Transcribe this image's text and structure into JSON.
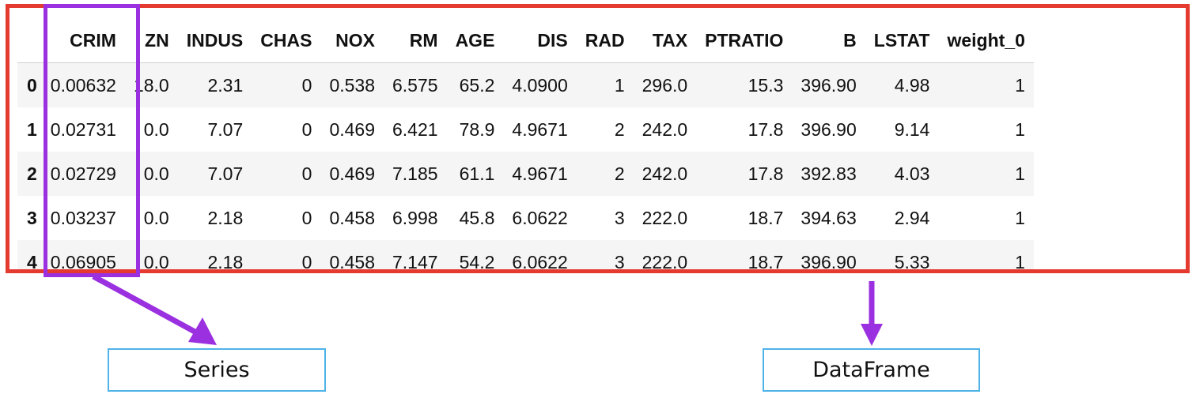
{
  "table": {
    "columns": [
      "",
      "CRIM",
      "ZN",
      "INDUS",
      "CHAS",
      "NOX",
      "RM",
      "AGE",
      "DIS",
      "RAD",
      "TAX",
      "PTRATIO",
      "B",
      "LSTAT",
      "weight_0"
    ],
    "rows": [
      {
        "index": "0",
        "cells": [
          "0.00632",
          "18.0",
          "2.31",
          "0",
          "0.538",
          "6.575",
          "65.2",
          "4.0900",
          "1",
          "296.0",
          "15.3",
          "396.90",
          "4.98",
          "1"
        ]
      },
      {
        "index": "1",
        "cells": [
          "0.02731",
          "0.0",
          "7.07",
          "0",
          "0.469",
          "6.421",
          "78.9",
          "4.9671",
          "2",
          "242.0",
          "17.8",
          "396.90",
          "9.14",
          "1"
        ]
      },
      {
        "index": "2",
        "cells": [
          "0.02729",
          "0.0",
          "7.07",
          "0",
          "0.469",
          "7.185",
          "61.1",
          "4.9671",
          "2",
          "242.0",
          "17.8",
          "392.83",
          "4.03",
          "1"
        ]
      },
      {
        "index": "3",
        "cells": [
          "0.03237",
          "0.0",
          "2.18",
          "0",
          "0.458",
          "6.998",
          "45.8",
          "6.0622",
          "3",
          "222.0",
          "18.7",
          "394.63",
          "2.94",
          "1"
        ]
      },
      {
        "index": "4",
        "cells": [
          "0.06905",
          "0.0",
          "2.18",
          "0",
          "0.458",
          "7.147",
          "54.2",
          "6.0622",
          "3",
          "222.0",
          "18.7",
          "396.90",
          "5.33",
          "1"
        ]
      }
    ]
  },
  "labels": {
    "series": "Series",
    "dataframe": "DataFrame"
  },
  "colors": {
    "dataframe_frame": "#e43a2f",
    "series_highlight": "#9b30e0",
    "label_border": "#4fb3e8"
  }
}
